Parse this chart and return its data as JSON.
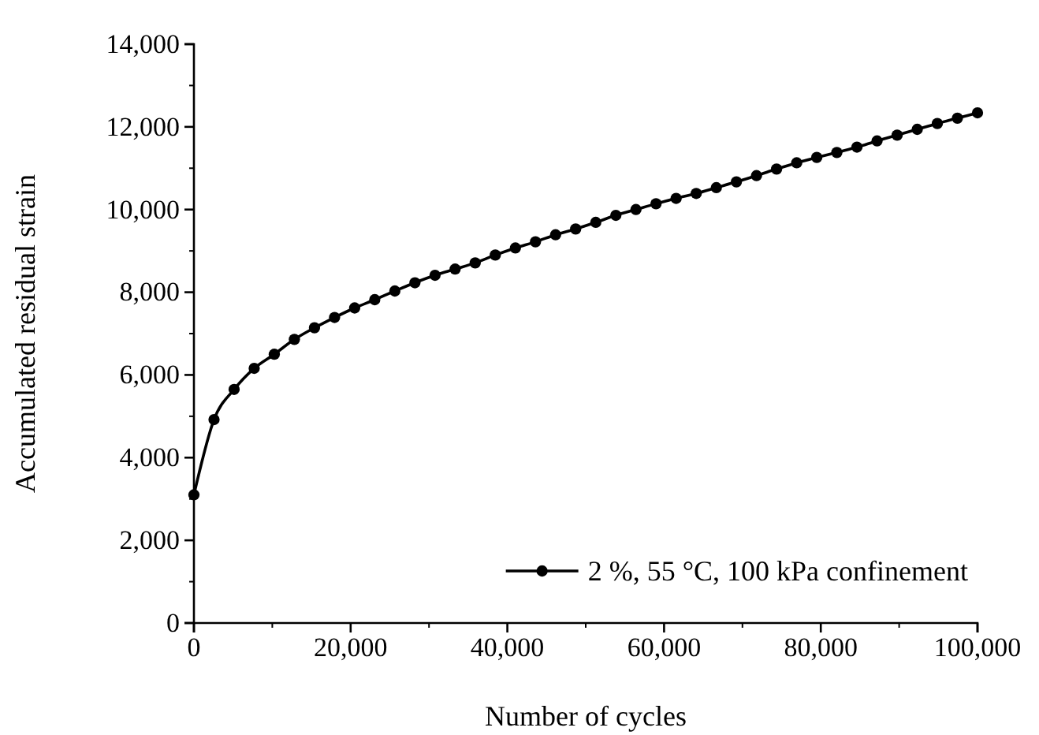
{
  "chart_data": {
    "type": "line",
    "xlabel": "Number of cycles",
    "ylabel": "Accumulated residual strain",
    "xlim": [
      0,
      100000
    ],
    "ylim": [
      0,
      14000
    ],
    "xticks": [
      {
        "value": 0,
        "label": "0"
      },
      {
        "value": 20000,
        "label": "20,000"
      },
      {
        "value": 40000,
        "label": "40,000"
      },
      {
        "value": 60000,
        "label": "60,000"
      },
      {
        "value": 80000,
        "label": "80,000"
      },
      {
        "value": 100000,
        "label": "100,000"
      }
    ],
    "yticks": [
      {
        "value": 0,
        "label": "0"
      },
      {
        "value": 2000,
        "label": "2,000"
      },
      {
        "value": 4000,
        "label": "4,000"
      },
      {
        "value": 6000,
        "label": "6,000"
      },
      {
        "value": 8000,
        "label": "8,000"
      },
      {
        "value": 10000,
        "label": "10,000"
      },
      {
        "value": 12000,
        "label": "12,000"
      },
      {
        "value": 14000,
        "label": "14,000"
      }
    ],
    "x": [
      0,
      2564,
      5128,
      7692,
      10256,
      12821,
      15385,
      17949,
      20513,
      23077,
      25641,
      28205,
      30769,
      33333,
      35897,
      38462,
      41026,
      43590,
      46154,
      48718,
      51282,
      53846,
      56410,
      58974,
      61538,
      64103,
      66667,
      69231,
      71795,
      74359,
      76923,
      79487,
      82051,
      84615,
      87179,
      89744,
      92308,
      94872,
      97436,
      100000
    ],
    "series": [
      {
        "name": "2 %, 55 °C, 100 kPa confinement",
        "color": "#000000",
        "values": [
          3100,
          4920,
          5650,
          6160,
          6500,
          6860,
          7140,
          7390,
          7620,
          7820,
          8030,
          8230,
          8410,
          8560,
          8710,
          8900,
          9070,
          9220,
          9390,
          9530,
          9690,
          9860,
          10000,
          10140,
          10270,
          10390,
          10530,
          10670,
          10820,
          10980,
          11130,
          11260,
          11380,
          11510,
          11660,
          11800,
          11940,
          12080,
          12210,
          12340
        ]
      }
    ],
    "marker": "circle",
    "line_style": "solid",
    "grid": false,
    "legend": "bottom right"
  }
}
